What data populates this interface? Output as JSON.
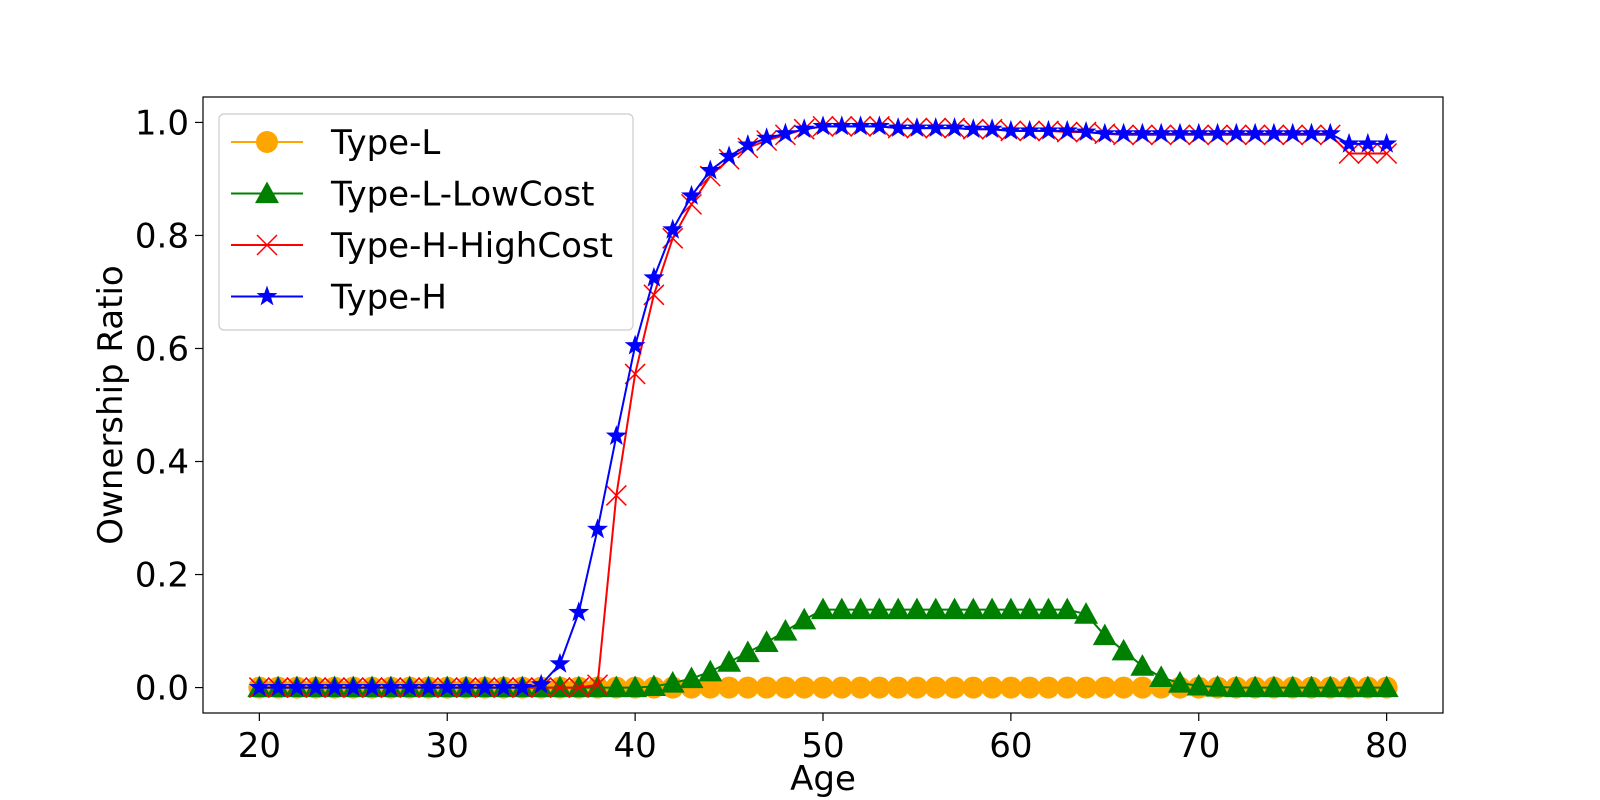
{
  "chart_data": {
    "type": "line",
    "title": "",
    "xlabel": "Age",
    "ylabel": "Ownership Ratio",
    "xlim": [
      17,
      83
    ],
    "ylim": [
      -0.045,
      1.045
    ],
    "xticks": [
      "20",
      "30",
      "40",
      "50",
      "60",
      "70",
      "80"
    ],
    "yticks": [
      "0.0",
      "0.2",
      "0.4",
      "0.6",
      "0.8",
      "1.0"
    ],
    "grid": false,
    "legend_position": "top-left",
    "x": [
      20,
      21,
      22,
      23,
      24,
      25,
      26,
      27,
      28,
      29,
      30,
      31,
      32,
      33,
      34,
      35,
      36,
      37,
      38,
      39,
      40,
      41,
      42,
      43,
      44,
      45,
      46,
      47,
      48,
      49,
      50,
      51,
      52,
      53,
      54,
      55,
      56,
      57,
      58,
      59,
      60,
      61,
      62,
      63,
      64,
      65,
      66,
      67,
      68,
      69,
      70,
      71,
      72,
      73,
      74,
      75,
      76,
      77,
      78,
      79,
      80
    ],
    "series": [
      {
        "name": "Type-L",
        "color": "#ffa500",
        "marker": "circle",
        "values": [
          0,
          0,
          0,
          0,
          0,
          0,
          0,
          0,
          0,
          0,
          0,
          0,
          0,
          0,
          0,
          0,
          0,
          0,
          0,
          0,
          0,
          0,
          0,
          0,
          0,
          0,
          0,
          0,
          0,
          0,
          0,
          0,
          0,
          0,
          0,
          0,
          0,
          0,
          0,
          0,
          0,
          0,
          0,
          0,
          0,
          0,
          0,
          0,
          0,
          0,
          0,
          0,
          0,
          0,
          0,
          0,
          0,
          0,
          0,
          0,
          0
        ]
      },
      {
        "name": "Type-L-LowCost",
        "color": "#008000",
        "marker": "triangle",
        "values": [
          0,
          0,
          0,
          0,
          0,
          0,
          0,
          0,
          0,
          0,
          0,
          0,
          0,
          0,
          0,
          0,
          0,
          0,
          0,
          0,
          0,
          0.002,
          0.008,
          0.016,
          0.028,
          0.045,
          0.062,
          0.08,
          0.1,
          0.12,
          0.138,
          0.138,
          0.138,
          0.138,
          0.138,
          0.138,
          0.138,
          0.138,
          0.138,
          0.138,
          0.138,
          0.138,
          0.138,
          0.138,
          0.13,
          0.092,
          0.065,
          0.038,
          0.018,
          0.008,
          0.003,
          0.001,
          0,
          0,
          0,
          0,
          0,
          0,
          0,
          0,
          0
        ]
      },
      {
        "name": "Type-H-HighCost",
        "color": "#ff0000",
        "marker": "x",
        "values": [
          0,
          0,
          0,
          0,
          0,
          0,
          0,
          0,
          0,
          0,
          0,
          0,
          0,
          0,
          0,
          0,
          0,
          0,
          0.005,
          0.34,
          0.555,
          0.695,
          0.795,
          0.855,
          0.905,
          0.935,
          0.955,
          0.968,
          0.978,
          0.988,
          0.993,
          0.993,
          0.993,
          0.993,
          0.99,
          0.99,
          0.99,
          0.99,
          0.988,
          0.988,
          0.985,
          0.985,
          0.985,
          0.983,
          0.983,
          0.98,
          0.978,
          0.978,
          0.978,
          0.978,
          0.978,
          0.978,
          0.978,
          0.978,
          0.978,
          0.978,
          0.978,
          0.978,
          0.945,
          0.945,
          0.945
        ]
      },
      {
        "name": "Type-H",
        "color": "#0000ff",
        "marker": "star",
        "values": [
          0,
          0,
          0,
          0,
          0,
          0,
          0,
          0,
          0,
          0,
          0,
          0,
          0,
          0,
          0,
          0.005,
          0.042,
          0.133,
          0.28,
          0.445,
          0.605,
          0.725,
          0.81,
          0.87,
          0.915,
          0.94,
          0.96,
          0.972,
          0.98,
          0.988,
          0.993,
          0.993,
          0.993,
          0.993,
          0.99,
          0.99,
          0.99,
          0.99,
          0.988,
          0.988,
          0.985,
          0.985,
          0.985,
          0.985,
          0.983,
          0.98,
          0.98,
          0.98,
          0.98,
          0.98,
          0.98,
          0.98,
          0.98,
          0.98,
          0.98,
          0.98,
          0.98,
          0.98,
          0.962,
          0.962,
          0.962
        ]
      }
    ]
  }
}
